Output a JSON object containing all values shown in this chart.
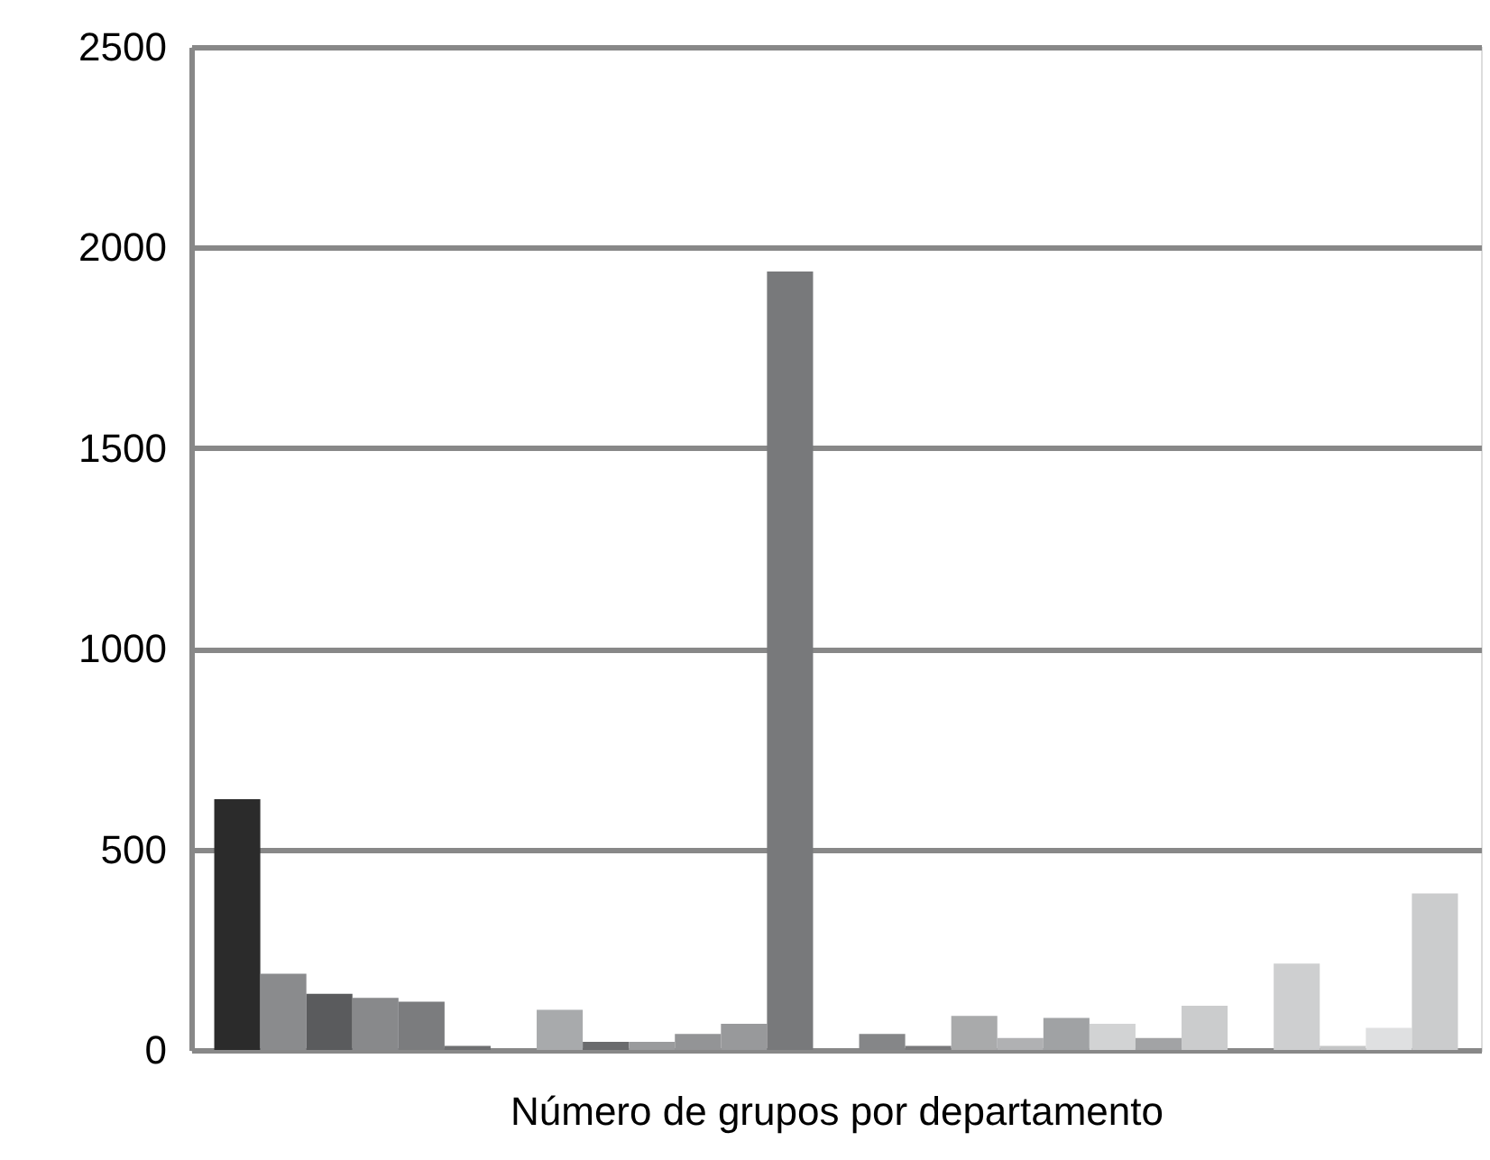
{
  "chart_data": {
    "type": "bar",
    "xlabel": "Número de grupos por departamento",
    "categories": [
      null,
      null,
      null,
      null,
      null,
      null,
      null,
      null,
      null,
      null,
      null,
      null,
      null,
      null,
      null,
      null,
      null,
      null,
      null,
      null,
      null,
      null,
      null,
      null,
      null,
      null,
      null
    ],
    "values": [
      625,
      190,
      140,
      130,
      120,
      10,
      0,
      100,
      20,
      20,
      40,
      65,
      1940,
      0,
      40,
      10,
      85,
      30,
      80,
      65,
      30,
      110,
      0,
      215,
      10,
      55,
      390
    ],
    "colors": [
      "#2b2b2b",
      "#8a8b8d",
      "#5a5b5d",
      "#88898b",
      "#7b7c7e",
      "#6e6f71",
      "#ffffff",
      "#a8aaac",
      "#6a6b6d",
      "#9a9b9d",
      "#939496",
      "#98999b",
      "#78797b",
      "#ffffff",
      "#858688",
      "#79797b",
      "#a9aaab",
      "#b0b1b3",
      "#a0a2a4",
      "#d2d3d4",
      "#a2a3a5",
      "#cbcccd",
      "#ffffff",
      "#cecfd0",
      "#c4c5c6",
      "#dfe0e1",
      "#cbcccd"
    ],
    "ylim": [
      0,
      2500
    ],
    "yticks": [
      0,
      500,
      1000,
      1500,
      2000,
      2500
    ],
    "grid": "y"
  }
}
